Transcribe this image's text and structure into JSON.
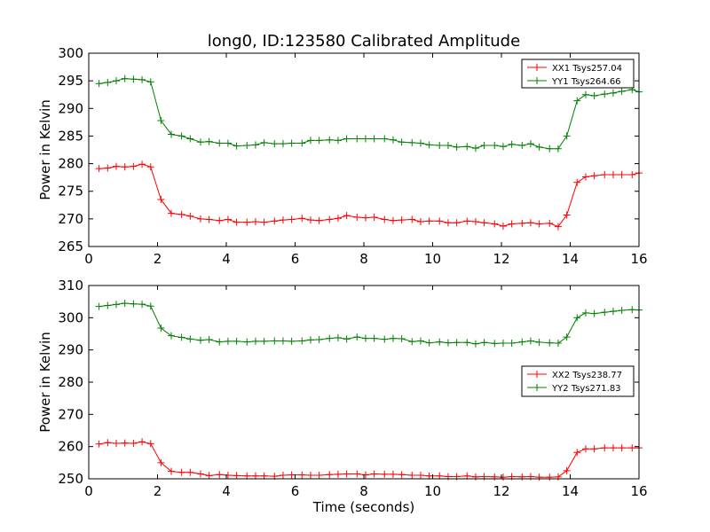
{
  "chart_data": [
    {
      "type": "line",
      "title": "long0, ID:123580 Calibrated Amplitude",
      "xlabel": "",
      "ylabel": "Power in Kelvin",
      "xlim": [
        0,
        16
      ],
      "ylim": [
        265,
        300
      ],
      "xticks": [
        "0",
        "2",
        "4",
        "6",
        "8",
        "10",
        "12",
        "14",
        "16"
      ],
      "yticks": [
        "265",
        "270",
        "275",
        "280",
        "285",
        "290",
        "295",
        "300"
      ],
      "grid": false,
      "legend": "top-right",
      "x": [
        0.3,
        0.55,
        0.8,
        1.05,
        1.3,
        1.55,
        1.8,
        2.1,
        2.4,
        2.7,
        2.95,
        3.25,
        3.5,
        3.8,
        4.05,
        4.3,
        4.6,
        4.85,
        5.1,
        5.4,
        5.65,
        5.9,
        6.2,
        6.45,
        6.7,
        7.0,
        7.25,
        7.5,
        7.8,
        8.05,
        8.3,
        8.6,
        8.85,
        9.1,
        9.4,
        9.65,
        9.9,
        10.2,
        10.45,
        10.7,
        11.0,
        11.25,
        11.5,
        11.8,
        12.05,
        12.3,
        12.6,
        12.85,
        13.1,
        13.4,
        13.65,
        13.9,
        14.2,
        14.45,
        14.7,
        15.0,
        15.25,
        15.5,
        15.8,
        16.0
      ],
      "series": [
        {
          "name": "XX1 Tsys257.04",
          "color": "#ff0000",
          "values": [
            279.1,
            279.2,
            279.5,
            279.4,
            279.5,
            279.9,
            279.4,
            273.5,
            271.0,
            270.8,
            270.5,
            270.0,
            269.9,
            269.7,
            269.9,
            269.4,
            269.4,
            269.5,
            269.4,
            269.6,
            269.8,
            269.9,
            270.1,
            269.8,
            269.7,
            269.9,
            270.1,
            270.6,
            270.3,
            270.2,
            270.3,
            269.9,
            269.7,
            269.8,
            269.9,
            269.5,
            269.6,
            269.6,
            269.3,
            269.3,
            269.6,
            269.5,
            269.3,
            269.1,
            268.7,
            269.1,
            269.2,
            269.3,
            269.1,
            269.2,
            268.6,
            270.7,
            276.6,
            277.6,
            277.8,
            278.0,
            278.0,
            278.0,
            278.0,
            278.3
          ]
        },
        {
          "name": "YY1 Tsys264.66",
          "color": "#008000",
          "values": [
            294.5,
            294.7,
            295.0,
            295.4,
            295.3,
            295.2,
            294.8,
            287.8,
            285.3,
            285.0,
            284.5,
            283.9,
            284.0,
            283.7,
            283.7,
            283.2,
            283.3,
            283.4,
            283.8,
            283.6,
            283.6,
            283.7,
            283.7,
            284.2,
            284.2,
            284.3,
            284.2,
            284.5,
            284.5,
            284.5,
            284.5,
            284.5,
            284.3,
            283.9,
            283.8,
            283.7,
            283.4,
            283.3,
            283.3,
            283.0,
            283.1,
            282.8,
            283.3,
            283.3,
            283.1,
            283.5,
            283.3,
            283.6,
            283.0,
            282.7,
            282.7,
            285.0,
            291.4,
            292.5,
            292.3,
            292.6,
            292.8,
            293.1,
            293.4,
            293.0
          ]
        }
      ]
    },
    {
      "type": "line",
      "title": "",
      "xlabel": "Time (seconds)",
      "ylabel": "Power in Kelvin",
      "xlim": [
        0,
        16
      ],
      "ylim": [
        250,
        310
      ],
      "xticks": [
        "0",
        "2",
        "4",
        "6",
        "8",
        "10",
        "12",
        "14",
        "16"
      ],
      "yticks": [
        "250",
        "260",
        "270",
        "280",
        "290",
        "300",
        "310"
      ],
      "grid": false,
      "legend": "center-right",
      "x": [
        0.3,
        0.55,
        0.8,
        1.05,
        1.3,
        1.55,
        1.8,
        2.1,
        2.4,
        2.7,
        2.95,
        3.25,
        3.5,
        3.8,
        4.05,
        4.3,
        4.6,
        4.85,
        5.1,
        5.4,
        5.65,
        5.9,
        6.2,
        6.45,
        6.7,
        7.0,
        7.25,
        7.5,
        7.8,
        8.05,
        8.3,
        8.6,
        8.85,
        9.1,
        9.4,
        9.65,
        9.9,
        10.2,
        10.45,
        10.7,
        11.0,
        11.25,
        11.5,
        11.8,
        12.05,
        12.3,
        12.6,
        12.85,
        13.1,
        13.4,
        13.65,
        13.9,
        14.2,
        14.45,
        14.7,
        15.0,
        15.25,
        15.5,
        15.8,
        16.0
      ],
      "series": [
        {
          "name": "XX2 Tsys238.77",
          "color": "#ff0000",
          "values": [
            260.8,
            261.2,
            261.0,
            261.1,
            261.0,
            261.5,
            260.9,
            255.0,
            252.3,
            252.0,
            252.0,
            251.5,
            251.0,
            251.3,
            251.1,
            251.0,
            250.9,
            250.9,
            250.9,
            250.8,
            251.1,
            251.2,
            251.2,
            251.1,
            251.1,
            251.3,
            251.4,
            251.5,
            251.5,
            251.2,
            251.5,
            251.4,
            251.4,
            251.3,
            251.1,
            251.1,
            250.9,
            250.9,
            250.7,
            250.7,
            250.9,
            250.6,
            250.7,
            250.6,
            250.5,
            250.7,
            250.6,
            250.7,
            250.5,
            250.5,
            250.6,
            252.5,
            258.2,
            259.3,
            259.3,
            259.6,
            259.6,
            259.6,
            259.6,
            259.6
          ]
        },
        {
          "name": "YY2 Tsys271.83",
          "color": "#008000",
          "values": [
            303.5,
            303.8,
            304.1,
            304.5,
            304.3,
            304.2,
            303.6,
            296.8,
            294.4,
            293.9,
            293.4,
            293.0,
            293.2,
            292.5,
            292.7,
            292.7,
            292.5,
            292.7,
            292.7,
            292.8,
            292.8,
            292.7,
            292.8,
            293.1,
            293.2,
            293.6,
            293.8,
            293.4,
            294.0,
            293.6,
            293.6,
            293.3,
            293.6,
            293.5,
            292.6,
            292.8,
            292.2,
            292.5,
            292.2,
            292.3,
            292.3,
            291.9,
            292.3,
            292.0,
            292.1,
            292.1,
            292.5,
            292.8,
            292.4,
            292.2,
            292.1,
            294.0,
            300.0,
            301.5,
            301.3,
            301.7,
            302.0,
            302.3,
            302.5,
            302.4
          ]
        }
      ]
    }
  ]
}
